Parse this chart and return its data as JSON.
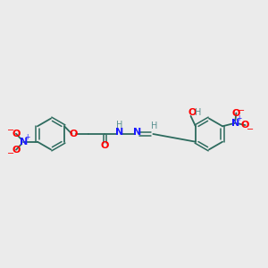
{
  "background_color": "#ebebeb",
  "bond_color": "#2d6b5e",
  "nitrogen_color": "#1a1aff",
  "oxygen_color": "#ff0000",
  "hydrogen_color": "#5a9090",
  "figsize": [
    3.0,
    3.0
  ],
  "dpi": 100,
  "xlim": [
    0,
    10
  ],
  "ylim": [
    2,
    8
  ]
}
